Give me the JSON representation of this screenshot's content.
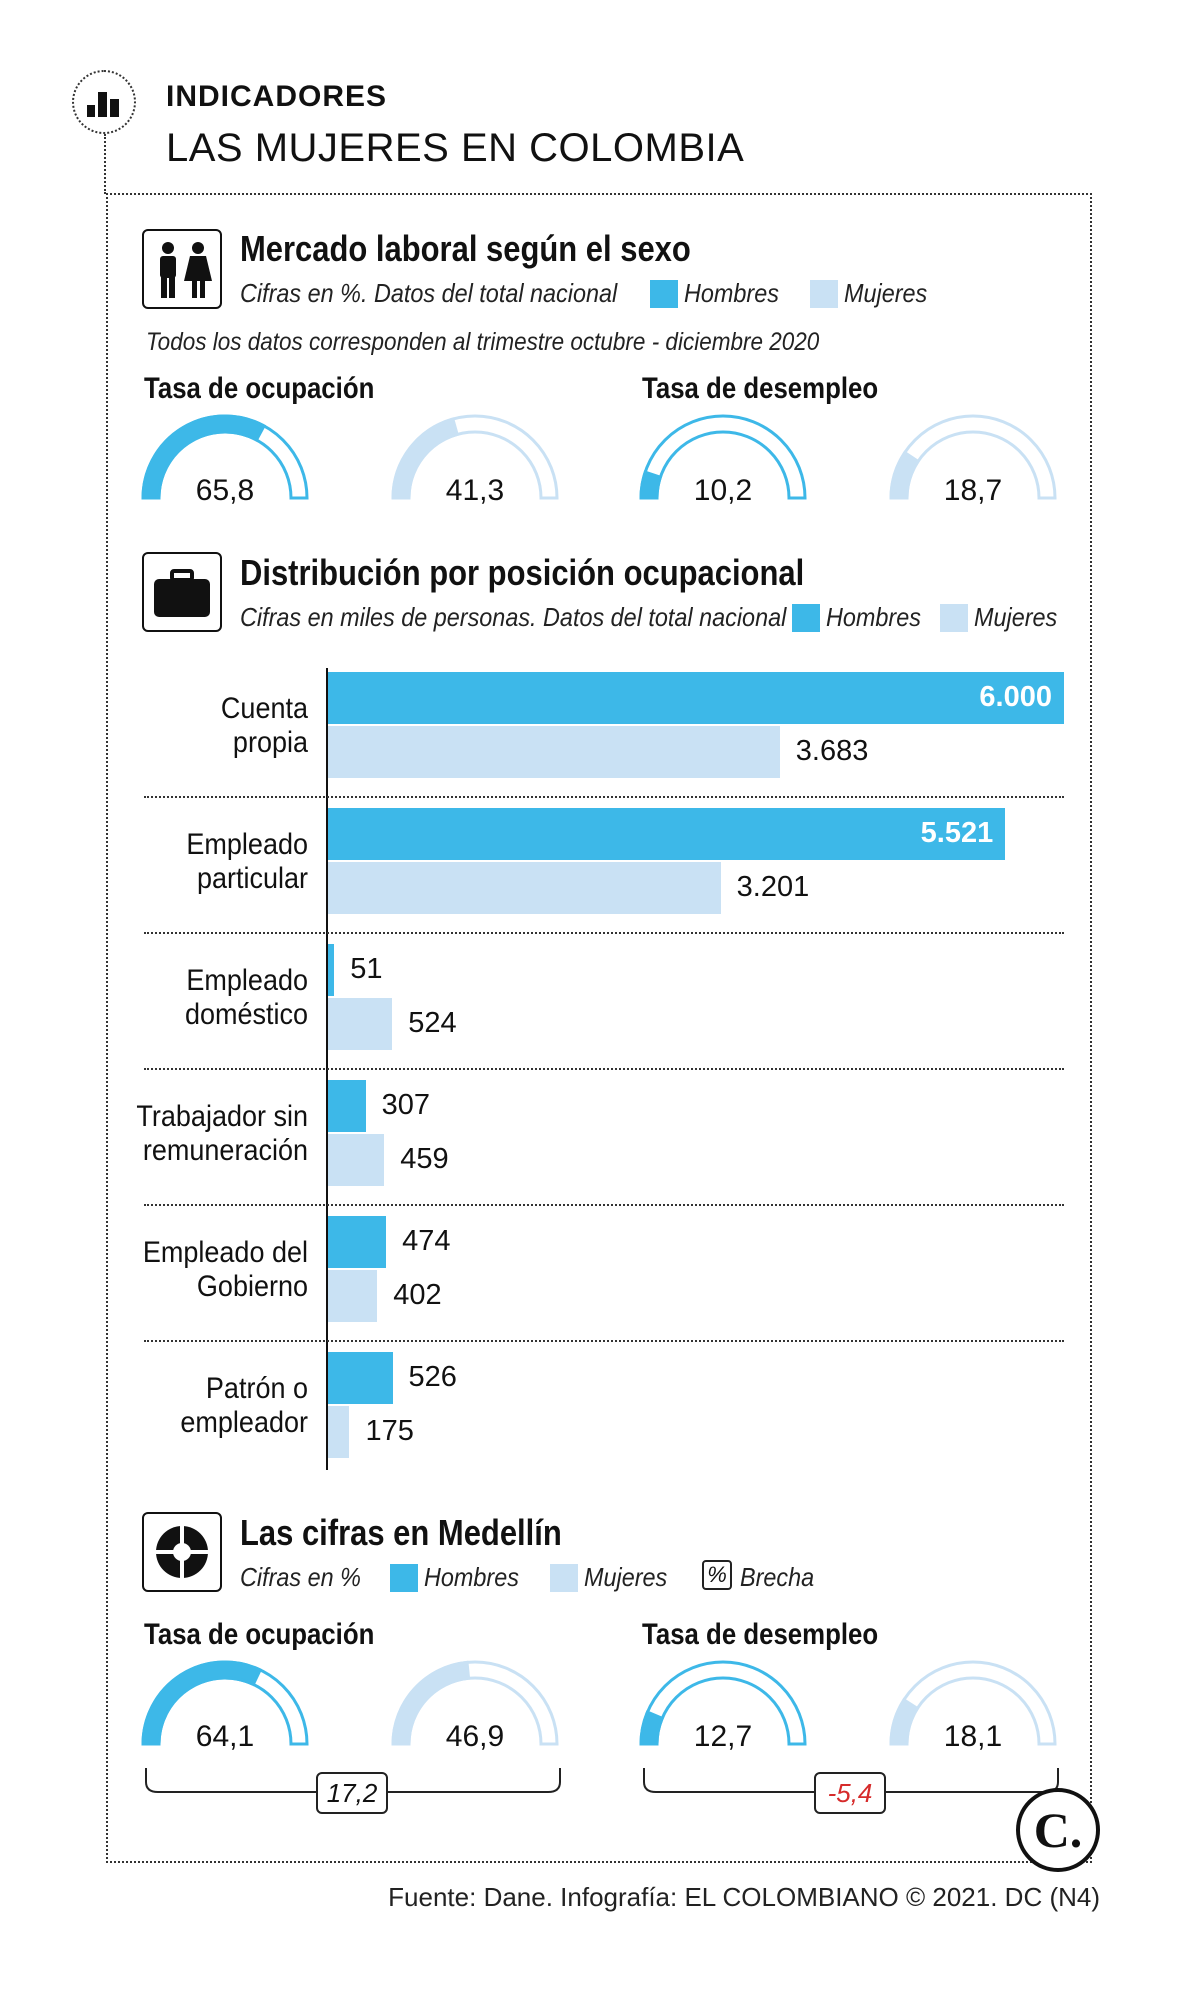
{
  "header": {
    "kicker": "INDICADORES",
    "title": "LAS MUJERES EN COLOMBIA"
  },
  "colors": {
    "hombres": "#3db8e8",
    "mujeres": "#c9e1f4",
    "negative": "#d62b2b"
  },
  "section1": {
    "title": "Mercado laboral según el sexo",
    "subtitle": "Cifras en %. Datos del total nacional",
    "legend_hombres": "Hombres",
    "legend_mujeres": "Mujeres",
    "note": "Todos los datos corresponden al trimestre octubre - diciembre 2020",
    "icon": "men-women-icon"
  },
  "section2": {
    "title": "Distribución por posición ocupacional",
    "subtitle": "Cifras en miles de personas. Datos del total nacional",
    "legend_hombres": "Hombres",
    "legend_mujeres": "Mujeres",
    "icon": "briefcase-icon"
  },
  "section3": {
    "title": "Las cifras en Medellín",
    "subtitle": "Cifras en %",
    "legend_hombres": "Hombres",
    "legend_mujeres": "Mujeres",
    "legend_brecha_symbol": "%",
    "legend_brecha": "Brecha",
    "icon": "pie-chart-icon"
  },
  "footer": "Fuente: Dane. Infografía: EL COLOMBIANO © 2021. DC (N4)",
  "brand_logo_letter": "C.",
  "chart_data": [
    {
      "type": "gauge",
      "groups": [
        {
          "label": "Tasa de ocupación",
          "hombres": 65.8,
          "mujeres": 41.3,
          "hombres_label": "65,8",
          "mujeres_label": "41,3"
        },
        {
          "label": "Tasa de desempleo",
          "hombres": 10.2,
          "mujeres": 18.7,
          "hombres_label": "10,2",
          "mujeres_label": "18,7"
        }
      ],
      "range": [
        0,
        100
      ]
    },
    {
      "type": "bar",
      "orientation": "horizontal",
      "categories": [
        "Cuenta propia",
        "Empleado particular",
        "Empleado doméstico",
        "Trabajador sin remuneración",
        "Empleado del Gobierno",
        "Patrón o empleador"
      ],
      "series": [
        {
          "name": "Hombres",
          "values": [
            6000,
            5521,
            51,
            307,
            474,
            526
          ],
          "labels": [
            "6.000",
            "5.521",
            "51",
            "307",
            "474",
            "526"
          ]
        },
        {
          "name": "Mujeres",
          "values": [
            3683,
            3201,
            524,
            459,
            402,
            175
          ],
          "labels": [
            "3.683",
            "3.201",
            "524",
            "459",
            "402",
            "175"
          ]
        }
      ],
      "xlim": [
        0,
        6000
      ]
    },
    {
      "type": "gauge",
      "groups": [
        {
          "label": "Tasa de ocupación",
          "hombres": 64.1,
          "mujeres": 46.9,
          "hombres_label": "64,1",
          "mujeres_label": "46,9",
          "brecha": "17,2",
          "brecha_negative": false
        },
        {
          "label": "Tasa de desempleo",
          "hombres": 12.7,
          "mujeres": 18.1,
          "hombres_label": "12,7",
          "mujeres_label": "18,1",
          "brecha": "-5,4",
          "brecha_negative": true
        }
      ],
      "range": [
        0,
        100
      ]
    }
  ]
}
